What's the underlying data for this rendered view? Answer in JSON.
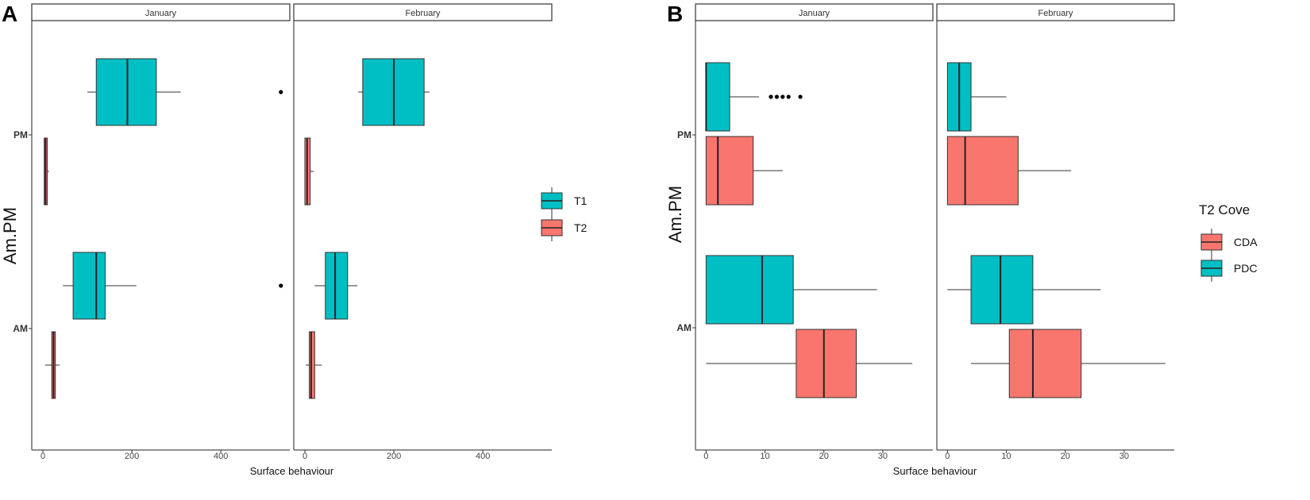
{
  "chart_data": [
    {
      "panel_label": "A",
      "type": "boxplot",
      "facets": [
        "January",
        "February"
      ],
      "xlabel": "Surface behaviour",
      "ylabel": "Am.PM",
      "xlim": [
        -25,
        555
      ],
      "xticks": [
        0,
        200,
        400
      ],
      "xtick_labels": [
        "0",
        "200",
        "400"
      ],
      "categories": [
        "PM",
        "AM"
      ],
      "legend": {
        "title": "",
        "position": "right",
        "entries": [
          {
            "key": "T1",
            "label": "T1",
            "color": "#00BFC4"
          },
          {
            "key": "T2",
            "label": "T2",
            "color": "#F8766D"
          }
        ]
      },
      "boxes": [
        {
          "facet": 0,
          "category": "PM",
          "group": "T1",
          "min": 100,
          "q1": 120,
          "median": 190,
          "q3": 255,
          "max": 310,
          "outliers": [
            535
          ]
        },
        {
          "facet": 0,
          "category": "PM",
          "group": "T2",
          "min": 3,
          "q1": 3,
          "median": 6,
          "q3": 10,
          "max": 14,
          "outliers": []
        },
        {
          "facet": 0,
          "category": "AM",
          "group": "T1",
          "min": 45,
          "q1": 68,
          "median": 120,
          "q3": 140,
          "max": 210,
          "outliers": [
            535
          ]
        },
        {
          "facet": 0,
          "category": "AM",
          "group": "T2",
          "min": 5,
          "q1": 20,
          "median": 24,
          "q3": 28,
          "max": 38,
          "outliers": []
        },
        {
          "facet": 1,
          "category": "PM",
          "group": "T1",
          "min": 120,
          "q1": 130,
          "median": 200,
          "q3": 268,
          "max": 280,
          "outliers": []
        },
        {
          "facet": 1,
          "category": "PM",
          "group": "T2",
          "min": 0,
          "q1": 0,
          "median": 5,
          "q3": 12,
          "max": 20,
          "outliers": []
        },
        {
          "facet": 1,
          "category": "AM",
          "group": "T1",
          "min": 22,
          "q1": 46,
          "median": 68,
          "q3": 96,
          "max": 118,
          "outliers": []
        },
        {
          "facet": 1,
          "category": "AM",
          "group": "T2",
          "min": 2,
          "q1": 10,
          "median": 14,
          "q3": 22,
          "max": 38,
          "outliers": []
        }
      ]
    },
    {
      "panel_label": "B",
      "type": "boxplot",
      "facets": [
        "January",
        "February"
      ],
      "xlabel": "Surface behaviour",
      "ylabel": "Am.PM",
      "xlim": [
        -1.8,
        38.5
      ],
      "xticks": [
        0,
        10,
        20,
        30
      ],
      "xtick_labels": [
        "0",
        "10",
        "20",
        "30"
      ],
      "categories": [
        "PM",
        "AM"
      ],
      "legend": {
        "title": "T2 Cove",
        "position": "right",
        "entries": [
          {
            "key": "CDA",
            "label": "CDA",
            "color": "#F8766D"
          },
          {
            "key": "PDC",
            "label": "PDC",
            "color": "#00BFC4"
          }
        ]
      },
      "boxes": [
        {
          "facet": 0,
          "category": "PM",
          "group": "PDC",
          "min": 0,
          "q1": 0,
          "median": 0,
          "q3": 4,
          "max": 9,
          "outliers": [
            11,
            12,
            13,
            14,
            16
          ]
        },
        {
          "facet": 0,
          "category": "PM",
          "group": "CDA",
          "min": 0,
          "q1": 0,
          "median": 2,
          "q3": 8,
          "max": 13,
          "outliers": []
        },
        {
          "facet": 0,
          "category": "AM",
          "group": "PDC",
          "min": 0,
          "q1": 0,
          "median": 9.5,
          "q3": 14.8,
          "max": 29,
          "outliers": []
        },
        {
          "facet": 0,
          "category": "AM",
          "group": "CDA",
          "min": 0,
          "q1": 15.3,
          "median": 20,
          "q3": 25.5,
          "max": 35,
          "outliers": []
        },
        {
          "facet": 1,
          "category": "PM",
          "group": "PDC",
          "min": 0,
          "q1": 0,
          "median": 2,
          "q3": 4,
          "max": 10,
          "outliers": []
        },
        {
          "facet": 1,
          "category": "PM",
          "group": "CDA",
          "min": 0,
          "q1": 0,
          "median": 3,
          "q3": 12,
          "max": 21,
          "outliers": []
        },
        {
          "facet": 1,
          "category": "AM",
          "group": "PDC",
          "min": 0,
          "q1": 4,
          "median": 9,
          "q3": 14.5,
          "max": 26,
          "outliers": []
        },
        {
          "facet": 1,
          "category": "AM",
          "group": "CDA",
          "min": 4,
          "q1": 10.5,
          "median": 14.5,
          "q3": 22.7,
          "max": 37,
          "outliers": []
        }
      ]
    }
  ]
}
